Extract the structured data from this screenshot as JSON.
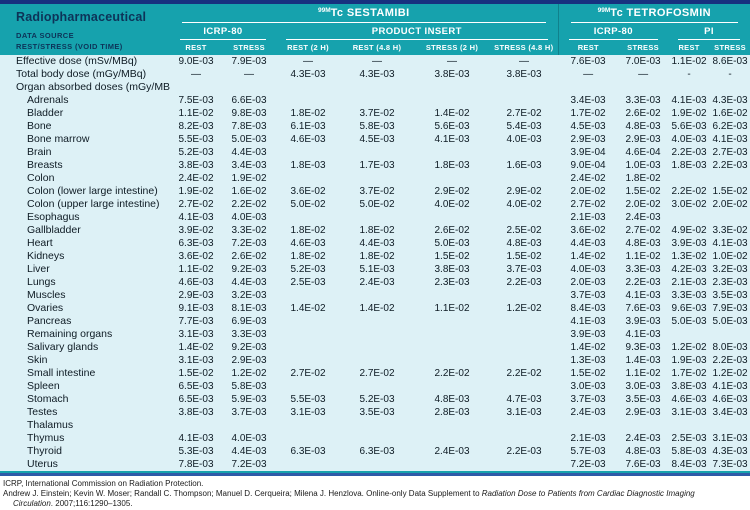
{
  "colors": {
    "top_bar": "#17317f",
    "header_bg": "#16a2ad",
    "header_text_light": "#ffffff",
    "header_text_dark": "#0d3358",
    "body_bg": "#ddf1f6",
    "body_text": "#0e1b24",
    "bottom_line_teal": "#16a2ad",
    "bottom_line_blue": "#2e5aa8",
    "footer_text": "#1a1a1a"
  },
  "header": {
    "radiopharmaceutical": "Radiopharmaceutical",
    "data_source": "DATA SOURCE",
    "rest_stress": "REST/STRESS (VOID TIME)",
    "isotopes": [
      {
        "sup": "99M",
        "name": "Tc SESTAMIBI",
        "span": 6
      },
      {
        "sup": "99M",
        "name": "Tc TETROFOSMIN",
        "span": 4
      }
    ],
    "subgroups": [
      {
        "label": "ICRP-80",
        "span": 2
      },
      {
        "label": "PRODUCT INSERT",
        "span": 4
      },
      {
        "label": "ICRP-80",
        "span": 2
      },
      {
        "label": "PI",
        "span": 2
      }
    ],
    "columns": [
      "REST",
      "STRESS",
      "REST (2 H)",
      "REST (4.8 H)",
      "STRESS (2 H)",
      "STRESS (4.8 H)",
      "REST",
      "STRESS",
      "REST",
      "STRESS"
    ]
  },
  "table": {
    "rows": [
      {
        "label": "Effective dose (mSv/MBq)",
        "indent": 0,
        "values": [
          "9.0E-03",
          "7.9E-03",
          "—",
          "—",
          "—",
          "—",
          "7.6E-03",
          "7.0E-03",
          "1.1E-02",
          "8.6E-03"
        ]
      },
      {
        "label": "Total body dose (mGy/MBq)",
        "indent": 0,
        "values": [
          "—",
          "—",
          "4.3E-03",
          "4.3E-03",
          "3.8E-03",
          "3.8E-03",
          "—",
          "—",
          "-",
          "-"
        ]
      },
      {
        "label": "Organ absorbed doses (mGy/MBq)",
        "indent": 0,
        "values": [
          "",
          "",
          "",
          "",
          "",
          "",
          "",
          "",
          "",
          ""
        ]
      },
      {
        "label": "Adrenals",
        "indent": 1,
        "values": [
          "7.5E-03",
          "6.6E-03",
          "",
          "",
          "",
          "",
          "3.4E-03",
          "3.3E-03",
          "4.1E-03",
          "4.3E-03"
        ]
      },
      {
        "label": "Bladder",
        "indent": 1,
        "values": [
          "1.1E-02",
          "9.8E-03",
          "1.8E-02",
          "3.7E-02",
          "1.4E-02",
          "2.7E-02",
          "1.7E-02",
          "2.6E-02",
          "1.9E-02",
          "1.6E-02"
        ]
      },
      {
        "label": "Bone",
        "indent": 1,
        "values": [
          "8.2E-03",
          "7.8E-03",
          "6.1E-03",
          "5.8E-03",
          "5.6E-03",
          "5.4E-03",
          "4.5E-03",
          "4.8E-03",
          "5.6E-03",
          "6.2E-03"
        ]
      },
      {
        "label": "Bone marrow",
        "indent": 1,
        "values": [
          "5.5E-03",
          "5.0E-03",
          "4.6E-03",
          "4.5E-03",
          "4.1E-03",
          "4.0E-03",
          "2.9E-03",
          "2.9E-03",
          "4.0E-03",
          "4.1E-03"
        ]
      },
      {
        "label": "Brain",
        "indent": 1,
        "values": [
          "5.2E-03",
          "4.4E-03",
          "",
          "",
          "",
          "",
          "3.9E-04",
          "4.6E-04",
          "2.2E-03",
          "2.7E-03"
        ]
      },
      {
        "label": "Breasts",
        "indent": 1,
        "values": [
          "3.8E-03",
          "3.4E-03",
          "1.8E-03",
          "1.7E-03",
          "1.8E-03",
          "1.6E-03",
          "9.0E-04",
          "1.0E-03",
          "1.8E-03",
          "2.2E-03"
        ]
      },
      {
        "label": "Colon",
        "indent": 1,
        "values": [
          "2.4E-02",
          "1.9E-02",
          "",
          "",
          "",
          "",
          "2.4E-02",
          "1.8E-02",
          "",
          ""
        ]
      },
      {
        "label": "Colon (lower large intestine)",
        "indent": 1,
        "values": [
          "1.9E-02",
          "1.6E-02",
          "3.6E-02",
          "3.7E-02",
          "2.9E-02",
          "2.9E-02",
          "2.0E-02",
          "1.5E-02",
          "2.2E-02",
          "1.5E-02"
        ]
      },
      {
        "label": "Colon (upper large intestine)",
        "indent": 1,
        "values": [
          "2.7E-02",
          "2.2E-02",
          "5.0E-02",
          "5.0E-02",
          "4.0E-02",
          "4.0E-02",
          "2.7E-02",
          "2.0E-02",
          "3.0E-02",
          "2.0E-02"
        ]
      },
      {
        "label": "Esophagus",
        "indent": 1,
        "values": [
          "4.1E-03",
          "4.0E-03",
          "",
          "",
          "",
          "",
          "2.1E-03",
          "2.4E-03",
          "",
          ""
        ]
      },
      {
        "label": "Gallbladder",
        "indent": 1,
        "values": [
          "3.9E-02",
          "3.3E-02",
          "1.8E-02",
          "1.8E-02",
          "2.6E-02",
          "2.5E-02",
          "3.6E-02",
          "2.7E-02",
          "4.9E-02",
          "3.3E-02"
        ]
      },
      {
        "label": "Heart",
        "indent": 1,
        "values": [
          "6.3E-03",
          "7.2E-03",
          "4.6E-03",
          "4.4E-03",
          "5.0E-03",
          "4.8E-03",
          "4.4E-03",
          "4.8E-03",
          "3.9E-03",
          "4.1E-03"
        ]
      },
      {
        "label": "Kidneys",
        "indent": 1,
        "values": [
          "3.6E-02",
          "2.6E-02",
          "1.8E-02",
          "1.8E-02",
          "1.5E-02",
          "1.5E-02",
          "1.4E-02",
          "1.1E-02",
          "1.3E-02",
          "1.0E-02"
        ]
      },
      {
        "label": "Liver",
        "indent": 1,
        "values": [
          "1.1E-02",
          "9.2E-03",
          "5.2E-03",
          "5.1E-03",
          "3.8E-03",
          "3.7E-03",
          "4.0E-03",
          "3.3E-03",
          "4.2E-03",
          "3.2E-03"
        ]
      },
      {
        "label": "Lungs",
        "indent": 1,
        "values": [
          "4.6E-03",
          "4.4E-03",
          "2.5E-03",
          "2.4E-03",
          "2.3E-03",
          "2.2E-03",
          "2.0E-03",
          "2.2E-03",
          "2.1E-03",
          "2.3E-03"
        ]
      },
      {
        "label": "Muscles",
        "indent": 1,
        "values": [
          "2.9E-03",
          "3.2E-03",
          "",
          "",
          "",
          "",
          "3.7E-03",
          "4.1E-03",
          "3.3E-03",
          "3.5E-03"
        ]
      },
      {
        "label": "Ovaries",
        "indent": 1,
        "values": [
          "9.1E-03",
          "8.1E-03",
          "1.4E-02",
          "1.4E-02",
          "1.1E-02",
          "1.2E-02",
          "8.4E-03",
          "7.6E-03",
          "9.6E-03",
          "7.9E-03"
        ]
      },
      {
        "label": "Pancreas",
        "indent": 1,
        "values": [
          "7.7E-03",
          "6.9E-03",
          "",
          "",
          "",
          "",
          "4.1E-03",
          "3.9E-03",
          "5.0E-03",
          "5.0E-03"
        ]
      },
      {
        "label": "Remaining organs",
        "indent": 1,
        "values": [
          "3.1E-03",
          "3.3E-03",
          "",
          "",
          "",
          "",
          "3.9E-03",
          "4.1E-03",
          "",
          ""
        ]
      },
      {
        "label": "Salivary glands",
        "indent": 1,
        "values": [
          "1.4E-02",
          "9.2E-03",
          "",
          "",
          "",
          "",
          "1.4E-02",
          "9.3E-03",
          "1.2E-02",
          "8.0E-03"
        ]
      },
      {
        "label": "Skin",
        "indent": 1,
        "values": [
          "3.1E-03",
          "2.9E-03",
          "",
          "",
          "",
          "",
          "1.3E-03",
          "1.4E-03",
          "1.9E-03",
          "2.2E-03"
        ]
      },
      {
        "label": "Small intestine",
        "indent": 1,
        "values": [
          "1.5E-02",
          "1.2E-02",
          "2.7E-02",
          "2.7E-02",
          "2.2E-02",
          "2.2E-02",
          "1.5E-02",
          "1.1E-02",
          "1.7E-02",
          "1.2E-02"
        ]
      },
      {
        "label": "Spleen",
        "indent": 1,
        "values": [
          "6.5E-03",
          "5.8E-03",
          "",
          "",
          "",
          "",
          "3.0E-03",
          "3.0E-03",
          "3.8E-03",
          "4.1E-03"
        ]
      },
      {
        "label": "Stomach",
        "indent": 1,
        "values": [
          "6.5E-03",
          "5.9E-03",
          "5.5E-03",
          "5.2E-03",
          "4.8E-03",
          "4.7E-03",
          "3.7E-03",
          "3.5E-03",
          "4.6E-03",
          "4.6E-03"
        ]
      },
      {
        "label": "Testes",
        "indent": 1,
        "values": [
          "3.8E-03",
          "3.7E-03",
          "3.1E-03",
          "3.5E-03",
          "2.8E-03",
          "3.1E-03",
          "2.4E-03",
          "2.9E-03",
          "3.1E-03",
          "3.4E-03"
        ]
      },
      {
        "label": "Thalamus",
        "indent": 1,
        "values": [
          "",
          "",
          "",
          "",
          "",
          "",
          "",
          "",
          "",
          ""
        ]
      },
      {
        "label": "Thymus",
        "indent": 1,
        "values": [
          "4.1E-03",
          "4.0E-03",
          "",
          "",
          "",
          "",
          "2.1E-03",
          "2.4E-03",
          "2.5E-03",
          "3.1E-03"
        ]
      },
      {
        "label": "Thyroid",
        "indent": 1,
        "values": [
          "5.3E-03",
          "4.4E-03",
          "6.3E-03",
          "6.3E-03",
          "2.4E-03",
          "2.2E-03",
          "5.7E-03",
          "4.8E-03",
          "5.8E-03",
          "4.3E-03"
        ]
      },
      {
        "label": "Uterus",
        "indent": 1,
        "values": [
          "7.8E-03",
          "7.2E-03",
          "",
          "",
          "",
          "",
          "7.2E-03",
          "7.6E-03",
          "8.4E-03",
          "7.3E-03"
        ]
      }
    ]
  },
  "footer": {
    "line1": "ICRP, International Commission on Radiation Protection.",
    "line2_prefix": "Andrew J. Einstein; Kevin W. Moser; Randall C. Thompson; Manuel D. Cerqueira; Milena J. Henzlova. Online-only Data Supplement to ",
    "line2_italic": "Radiation Dose to Patients from Cardiac Diagnostic Imaging",
    "line3_italic": "Circulation",
    "line3_suffix": ". 2007;116:1290–1305."
  }
}
